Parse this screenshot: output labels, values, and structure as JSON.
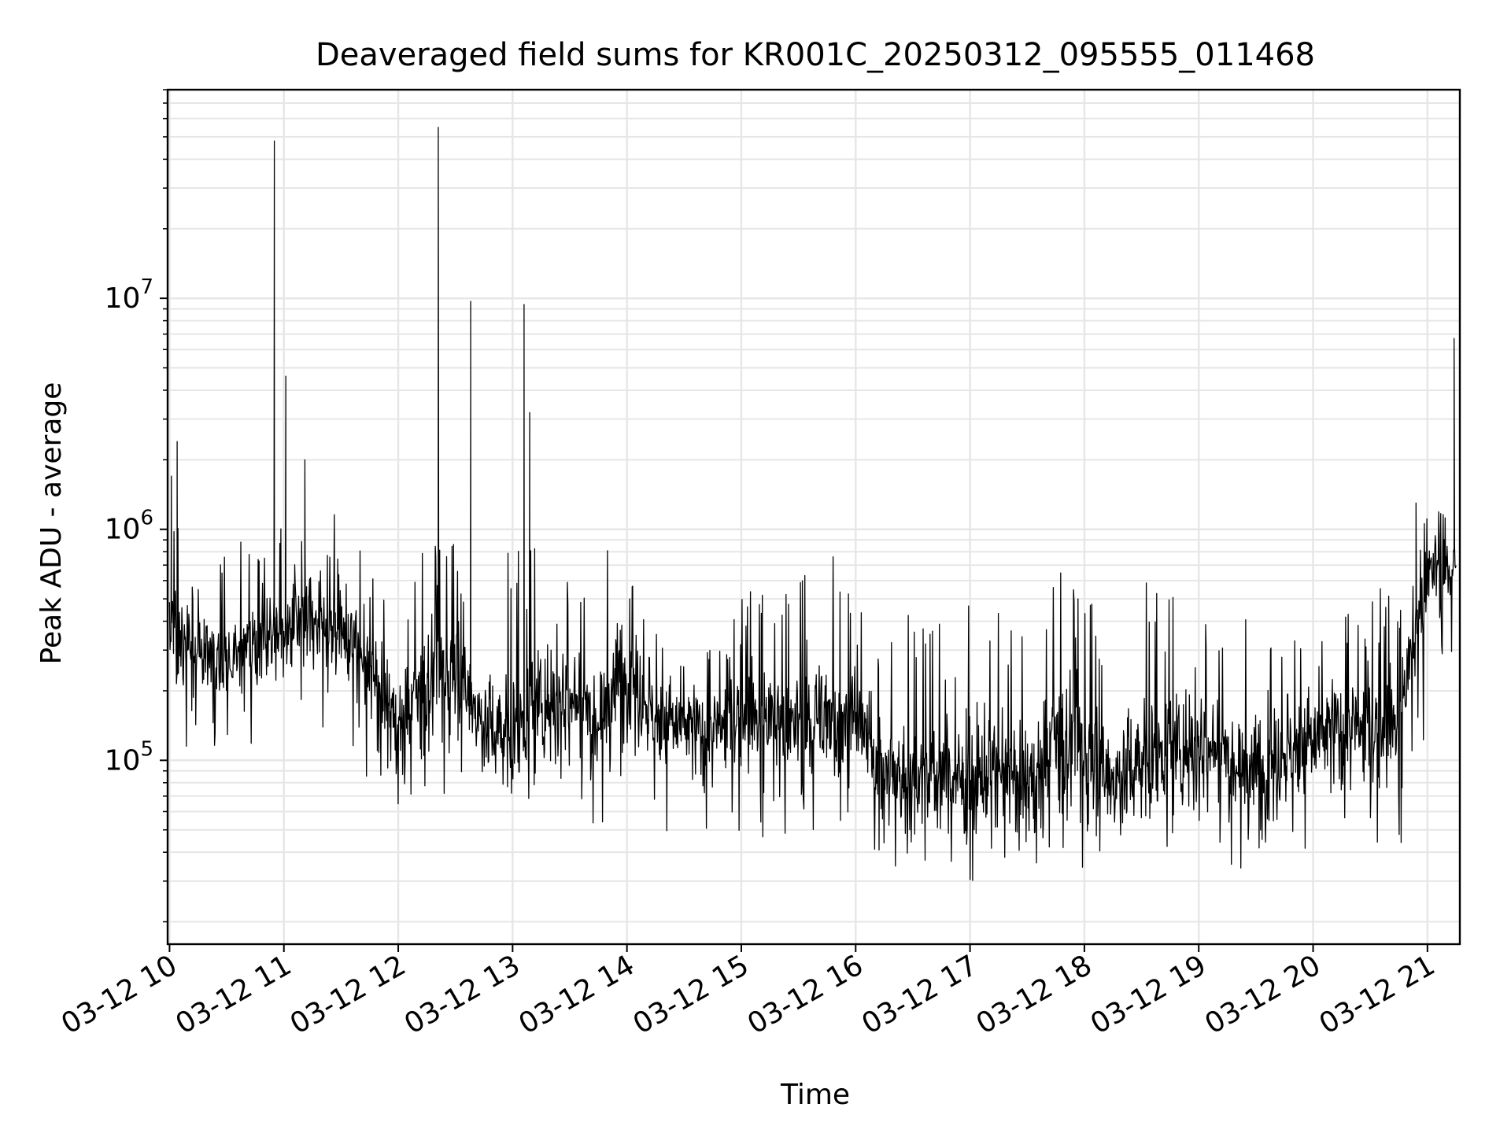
{
  "chart_data": {
    "type": "line",
    "title": "Deaveraged field sums for KR001C_20250312_095555_011468",
    "xlabel": "Time",
    "ylabel": "Peak ADU - average",
    "xscale": "time",
    "yscale": "log",
    "xlim": [
      "2025-03-12 09:59",
      "2025-03-12 21:17"
    ],
    "ylim": [
      16000,
      80000000
    ],
    "grid": true,
    "line_color": "#000000",
    "x_ticks": [
      "03-12 10",
      "03-12 11",
      "03-12 12",
      "03-12 13",
      "03-12 14",
      "03-12 15",
      "03-12 16",
      "03-12 17",
      "03-12 18",
      "03-12 19",
      "03-12 20",
      "03-12 21"
    ],
    "y_ticks": [
      {
        "value": 100000,
        "base": "10",
        "exp": "5"
      },
      {
        "value": 1000000,
        "base": "10",
        "exp": "6"
      },
      {
        "value": 10000000,
        "base": "10",
        "exp": "7"
      }
    ],
    "series": [
      {
        "x": [
          "2025-03-12 10:00",
          "2025-03-12 10:15",
          "2025-03-12 10:30",
          "2025-03-12 10:45",
          "2025-03-12 11:00",
          "2025-03-12 11:15",
          "2025-03-12 11:30",
          "2025-03-12 11:45",
          "2025-03-12 12:00",
          "2025-03-12 12:15",
          "2025-03-12 12:30",
          "2025-03-12 12:45",
          "2025-03-12 13:00",
          "2025-03-12 13:15",
          "2025-03-12 13:30",
          "2025-03-12 13:45",
          "2025-03-12 14:00",
          "2025-03-12 14:15",
          "2025-03-12 14:30",
          "2025-03-12 14:45",
          "2025-03-12 15:00",
          "2025-03-12 15:15",
          "2025-03-12 15:30",
          "2025-03-12 15:45",
          "2025-03-12 16:00",
          "2025-03-12 16:15",
          "2025-03-12 16:30",
          "2025-03-12 16:45",
          "2025-03-12 17:00",
          "2025-03-12 17:15",
          "2025-03-12 17:30",
          "2025-03-12 17:45",
          "2025-03-12 18:00",
          "2025-03-12 18:15",
          "2025-03-12 18:30",
          "2025-03-12 18:45",
          "2025-03-12 19:00",
          "2025-03-12 19:15",
          "2025-03-12 19:30",
          "2025-03-12 19:45",
          "2025-03-12 20:00",
          "2025-03-12 20:15",
          "2025-03-12 20:30",
          "2025-03-12 20:45",
          "2025-03-12 21:00",
          "2025-03-12 21:15"
        ],
        "values": [
          350000,
          300000,
          280000,
          330000,
          380000,
          420000,
          380000,
          240000,
          150000,
          220000,
          250000,
          140000,
          130000,
          180000,
          190000,
          160000,
          260000,
          150000,
          140000,
          130000,
          160000,
          150000,
          140000,
          160000,
          150000,
          90000,
          80000,
          85000,
          90000,
          90000,
          80000,
          130000,
          110000,
          80000,
          100000,
          110000,
          120000,
          110000,
          90000,
          110000,
          120000,
          140000,
          130000,
          150000,
          650000,
          700000
        ],
        "range_low": [
          130000,
          90000,
          90000,
          110000,
          90000,
          120000,
          90000,
          60000,
          60000,
          70000,
          60000,
          50000,
          55000,
          60000,
          60000,
          50000,
          60000,
          50000,
          40000,
          40000,
          50000,
          45000,
          40000,
          45000,
          45000,
          30000,
          30000,
          30000,
          30000,
          30000,
          30000,
          40000,
          30000,
          25000,
          35000,
          35000,
          40000,
          35000,
          30000,
          35000,
          40000,
          45000,
          45000,
          40000,
          120000,
          300000
        ],
        "range_high": [
          1700000,
          1100000,
          900000,
          1000000,
          1200000,
          1400000,
          1100000,
          800000,
          500000,
          1000000,
          1000000,
          600000,
          1000000,
          1000000,
          1000000,
          1100000,
          1000000,
          600000,
          400000,
          400000,
          500000,
          700000,
          600000,
          1000000,
          500000,
          400000,
          500000,
          400000,
          600000,
          500000,
          500000,
          800000,
          600000,
          500000,
          700000,
          600000,
          700000,
          600000,
          500000,
          600000,
          700000,
          650000,
          600000,
          500000,
          1300000,
          1100000
        ],
        "peaks": [
          {
            "x": "2025-03-12 10:01",
            "value": 1700000
          },
          {
            "x": "2025-03-12 10:04",
            "value": 2400000
          },
          {
            "x": "2025-03-12 10:55",
            "value": 48000000
          },
          {
            "x": "2025-03-12 11:01",
            "value": 4600000
          },
          {
            "x": "2025-03-12 11:11",
            "value": 2000000
          },
          {
            "x": "2025-03-12 12:21",
            "value": 55000000
          },
          {
            "x": "2025-03-12 12:38",
            "value": 9700000
          },
          {
            "x": "2025-03-12 12:38",
            "value": 4300000
          },
          {
            "x": "2025-03-12 13:06",
            "value": 9400000
          },
          {
            "x": "2025-03-12 13:06",
            "value": 6000000
          },
          {
            "x": "2025-03-12 13:09",
            "value": 3200000
          },
          {
            "x": "2025-03-12 20:54",
            "value": 1300000
          },
          {
            "x": "2025-03-12 21:14",
            "value": 6700000
          }
        ]
      }
    ]
  }
}
